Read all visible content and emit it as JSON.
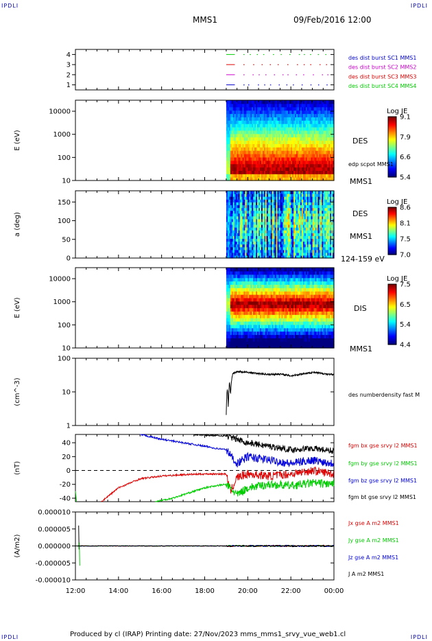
{
  "corners": {
    "tl": "IPDLI",
    "tr": "IPDLI",
    "bl": "IPDLI",
    "br": "IPDLI"
  },
  "header": {
    "mission": "MMS1",
    "datetime": "09/Feb/2016 12:00"
  },
  "footer": {
    "text": "Produced by cl (IRAP)   Printing date: 27/Nov/2023   mms_mms1_srvy_vue_web1.cl"
  },
  "chart_data": [
    {
      "type": "line",
      "panel": "availability",
      "ylim": [
        0.5,
        4.5
      ],
      "y_ticks": [
        "1",
        "2",
        "3",
        "4"
      ],
      "series": [
        {
          "name": "des dist burst SC1 MMS1",
          "color": "#0000cc",
          "level": 1
        },
        {
          "name": "des dist burst SC2 MMS2",
          "color": "#cc00cc",
          "level": 2
        },
        {
          "name": "des dist burst SC3 MMS3",
          "color": "#dd0000",
          "level": 3
        },
        {
          "name": "des dist burst SC4 MMS4",
          "color": "#00cc00",
          "level": 4
        }
      ]
    },
    {
      "type": "heatmap",
      "panel": "des-energy",
      "ylabel": "E (eV)",
      "yscale": "log",
      "ylim": [
        10,
        30000
      ],
      "y_ticks": [
        "10",
        "100",
        "1000",
        "10000"
      ],
      "data_start_hour": 19.0,
      "side_labels": [
        "DES",
        "edp scpot MMS1",
        "MMS1"
      ],
      "colorbar": {
        "title": "Log JE",
        "ticks": [
          "9.1",
          "7.9",
          "6.6",
          "5.4"
        ]
      }
    },
    {
      "type": "heatmap",
      "panel": "des-pitch",
      "ylabel": "a (deg)",
      "ylim": [
        0,
        180
      ],
      "y_ticks": [
        "0",
        "50",
        "100",
        "150"
      ],
      "data_start_hour": 19.0,
      "side_labels": [
        "DES",
        "MMS1",
        "124-159 eV"
      ],
      "colorbar": {
        "title": "Log JE",
        "ticks": [
          "8.6",
          "8.1",
          "7.5",
          "7.0"
        ]
      }
    },
    {
      "type": "heatmap",
      "panel": "dis-energy",
      "ylabel": "E (eV)",
      "yscale": "log",
      "ylim": [
        10,
        30000
      ],
      "y_ticks": [
        "10",
        "100",
        "1000",
        "10000"
      ],
      "data_start_hour": 19.0,
      "side_labels": [
        "DIS",
        "MMS1"
      ],
      "colorbar": {
        "title": "Log JE",
        "ticks": [
          "7.5",
          "6.5",
          "5.4",
          "4.4"
        ]
      }
    },
    {
      "type": "line",
      "panel": "density",
      "ylabel": "(cm^-3)",
      "yscale": "log",
      "ylim": [
        1,
        100
      ],
      "y_ticks": [
        "1",
        "10",
        "100"
      ],
      "series": [
        {
          "name": "des numberdensity fast M",
          "color": "#000000",
          "x": [
            19.0,
            19.05,
            19.1,
            19.15,
            19.2,
            19.3,
            19.5,
            20.0,
            20.5,
            21.0,
            21.5,
            22.0,
            22.5,
            23.0,
            23.5,
            24.0
          ],
          "y": [
            2,
            12,
            3,
            20,
            8,
            35,
            40,
            38,
            35,
            33,
            34,
            30,
            34,
            38,
            35,
            32
          ]
        }
      ]
    },
    {
      "type": "line",
      "panel": "magnetic-field",
      "ylabel": "(nT)",
      "ylim": [
        -45,
        52
      ],
      "y_ticks": [
        "-40",
        "-20",
        "0",
        "20",
        "40"
      ],
      "series": [
        {
          "name": "fgm bx gse srvy l2 MMS1",
          "color": "#dd0000",
          "x": [
            13.2,
            14.0,
            15.0,
            16.0,
            17.0,
            18.0,
            19.0,
            19.2,
            19.5,
            20.0,
            21.0,
            22.0,
            23.0,
            24.0
          ],
          "y": [
            -45,
            -25,
            -12,
            -8,
            -6,
            -5,
            -5,
            -30,
            -10,
            -5,
            -8,
            -5,
            0,
            -5
          ]
        },
        {
          "name": "fgm by gse srvy l2 MMS1",
          "color": "#00cc00",
          "x": [
            15.7,
            16.5,
            17.0,
            17.5,
            18.0,
            18.5,
            19.0,
            19.5,
            20.0,
            21.0,
            22.0,
            23.0,
            24.0
          ],
          "y": [
            -45,
            -40,
            -35,
            -30,
            -25,
            -22,
            -20,
            -35,
            -25,
            -20,
            -22,
            -18,
            -20
          ]
        },
        {
          "name": "fgm bz gse srvy l2 MMS1",
          "color": "#0000dd",
          "x": [
            15.0,
            16.0,
            17.0,
            18.0,
            18.5,
            19.0,
            19.5,
            20.0,
            21.0,
            22.0,
            23.0,
            24.0
          ],
          "y": [
            52,
            45,
            40,
            35,
            32,
            30,
            10,
            20,
            15,
            10,
            15,
            10
          ]
        },
        {
          "name": "fgm bt gse srvy l2 MMS1",
          "color": "#000000",
          "x": [
            17.5,
            18.0,
            19.0,
            19.5,
            20.0,
            21.0,
            22.0,
            23.0,
            24.0
          ],
          "y": [
            52,
            51,
            50,
            45,
            40,
            35,
            30,
            32,
            28
          ]
        }
      ]
    },
    {
      "type": "line",
      "panel": "current-density",
      "ylabel": "(A/m2)",
      "ylim": [
        -1e-05,
        1e-05
      ],
      "y_ticks": [
        "0.000010",
        "0.000005",
        "0.000000",
        "-0.000005",
        "-0.000010"
      ],
      "series": [
        {
          "name": "Jx gse A m2 MMS1",
          "color": "#dd0000"
        },
        {
          "name": "Jy gse A m2 MMS1",
          "color": "#00cc00"
        },
        {
          "name": "Jz gse A m2 MMS1",
          "color": "#0000dd"
        },
        {
          "name": "J A m2 MMS1",
          "color": "#000000"
        }
      ]
    }
  ],
  "time_axis": {
    "ticks": [
      "12:00",
      "14:00",
      "16:00",
      "18:00",
      "20:00",
      "22:00",
      "00:00"
    ]
  }
}
